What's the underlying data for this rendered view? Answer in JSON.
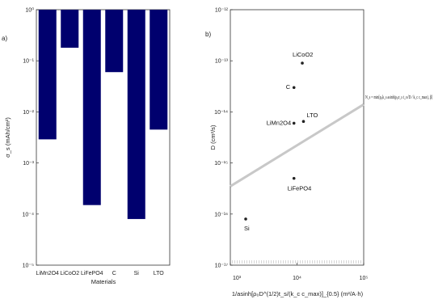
{
  "chart_data": [
    {
      "type": "bar",
      "panel_label": "a)",
      "xlabel": "Materials",
      "ylabel": "σ_s (mAh/cm²)",
      "yscale": "log",
      "ylim": [
        1e-05,
        1
      ],
      "ytick_labels": [
        "10⁰",
        "10⁻¹",
        "10⁻²",
        "10⁻³",
        "10⁻⁴",
        "10⁻⁵"
      ],
      "categories": [
        "LiMn2O4",
        "LiCoO2",
        "LiFePO4",
        "C",
        "Si",
        "LTO"
      ],
      "values": [
        0.0029,
        0.18,
        0.00015,
        0.06,
        8e-05,
        0.0045
      ],
      "bar_color": "#00006e"
    },
    {
      "type": "scatter",
      "panel_label": "b)",
      "xlabel": "1/asinh[ρ₀D^(1/2)t_s/(k_c c_max)]_{0.5} (m²/A·h)",
      "ylabel": "D (cm²/s)",
      "xscale": "log",
      "yscale": "log",
      "xlim": [
        1000,
        100000
      ],
      "ylim": [
        1e-17,
        1e-12
      ],
      "xtick_labels": [
        "10³",
        "10⁴",
        "10⁵"
      ],
      "ytick_labels": [
        "10⁻¹²",
        "10⁻¹³",
        "10⁻¹⁴",
        "10⁻¹⁵",
        "10⁻¹⁶",
        "10⁻¹⁷"
      ],
      "points": [
        {
          "label": "LiCoO2",
          "x": 12000,
          "y": 9e-14
        },
        {
          "label": "C",
          "x": 9000,
          "y": 3e-14
        },
        {
          "label": "LiMn2O4",
          "x": 9000,
          "y": 6e-15
        },
        {
          "label": "LTO",
          "x": 12500,
          "y": 6.5e-15
        },
        {
          "label": "LiFePO4",
          "x": 9000,
          "y": 5e-16
        },
        {
          "label": "Si",
          "x": 1700,
          "y": 8e-17
        }
      ],
      "fit_line": {
        "x": [
          1000,
          100000
        ],
        "y": [
          3.5e-16,
          1.4e-14
        ]
      },
      "equation": "N_s = min[ρ₀k_s asinh(ρ₀σ_s t_s√D / k_c c_max), β]"
    }
  ]
}
